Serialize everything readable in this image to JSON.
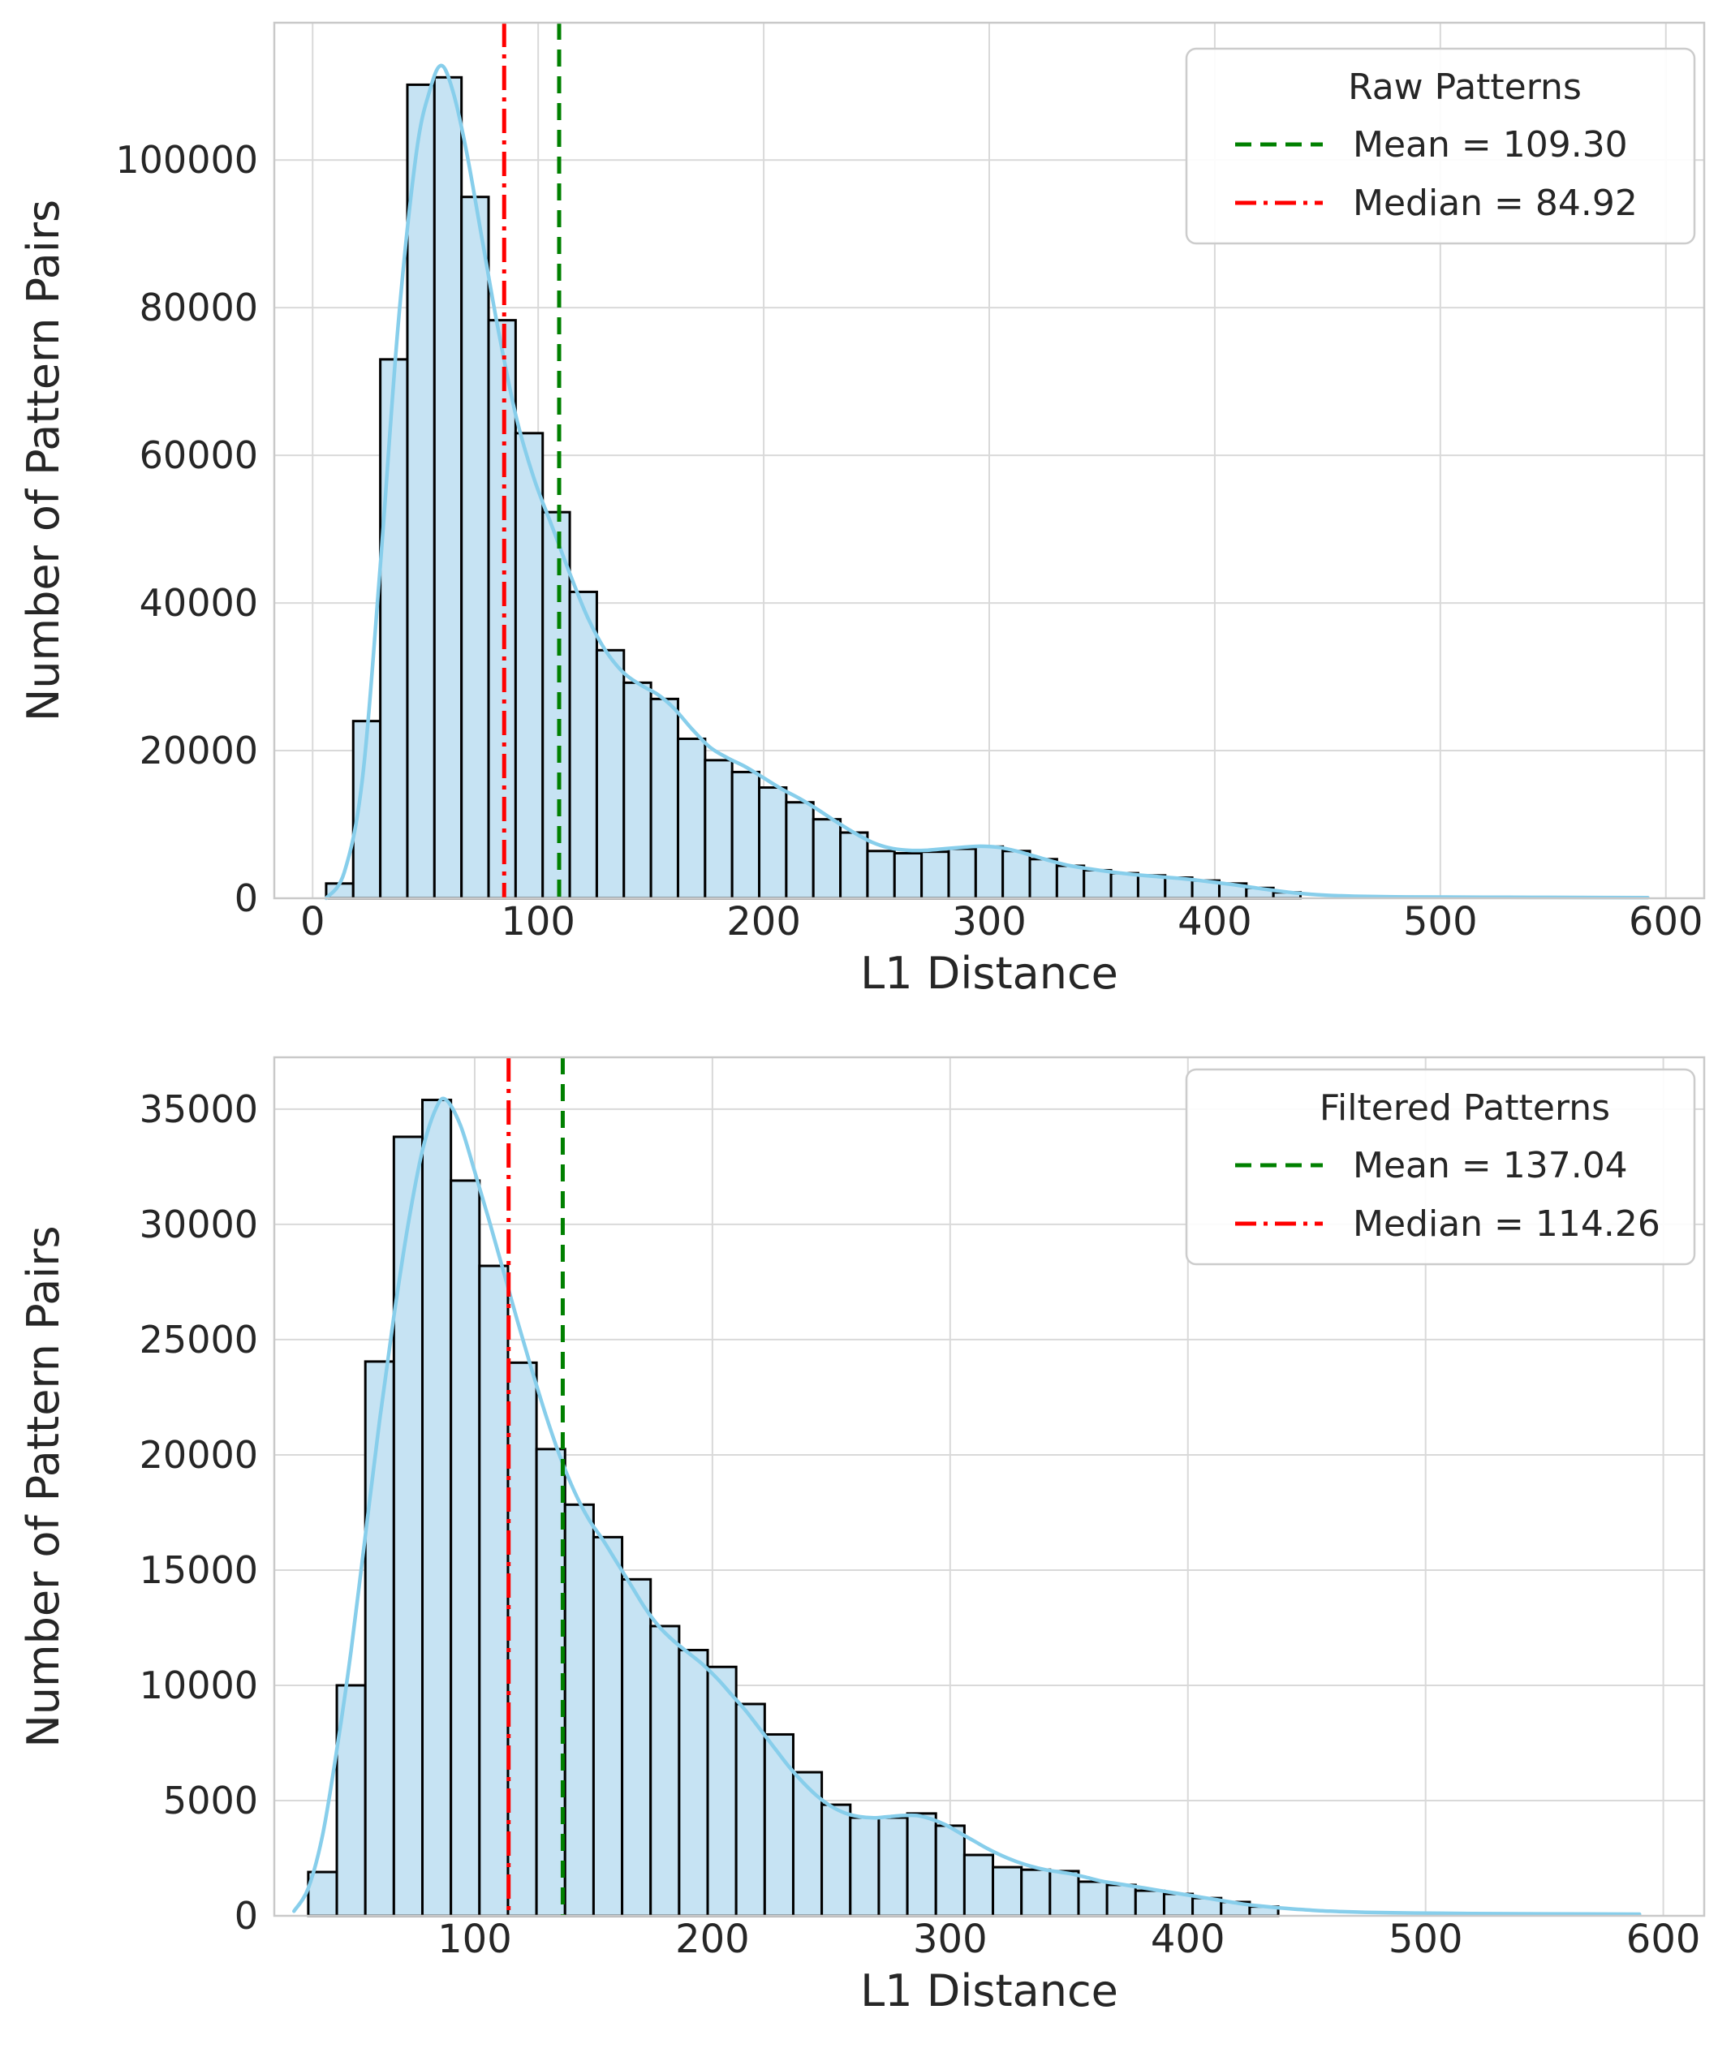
{
  "figure": {
    "background": "#ffffff",
    "colors": {
      "bar_fill": "#c6e3f3",
      "bar_edge": "#000000",
      "kde_line": "#87ceeb",
      "mean_line": "#008000",
      "median_line": "#ff0000",
      "grid": "#d9d9d9",
      "spine": "#c9c9c9",
      "text": "#262626",
      "legend_border": "#cccccc",
      "legend_fill": "#ffffff"
    }
  },
  "chart_data": [
    {
      "type": "bar",
      "name": "raw-patterns-histogram",
      "title": "",
      "xlabel": "L1 Distance",
      "ylabel": "Number of Pattern Pairs",
      "legend": {
        "position": "upper right",
        "title": "Raw Patterns",
        "mean_label": "Mean = 109.30",
        "median_label": "Median = 84.92"
      },
      "mean": 109.3,
      "median": 84.92,
      "grid": true,
      "xlim": [
        -17,
        617
      ],
      "ylim": [
        0,
        118600
      ],
      "x_ticks": [
        0,
        100,
        200,
        300,
        400,
        500,
        600
      ],
      "y_ticks": [
        0,
        20000,
        40000,
        60000,
        80000,
        100000
      ],
      "bin_start": 6,
      "bin_width": 12,
      "counts": [
        2000,
        24000,
        73000,
        110200,
        111200,
        95000,
        78300,
        63000,
        52300,
        41500,
        33600,
        29200,
        27000,
        21600,
        18700,
        17100,
        15000,
        13000,
        10700,
        8900,
        6400,
        6100,
        6300,
        6700,
        7000,
        6400,
        5300,
        4400,
        3800,
        3400,
        3100,
        2800,
        2400,
        2000,
        1400,
        800
      ],
      "kde": [
        [
          6,
          0
        ],
        [
          14,
          3500
        ],
        [
          22,
          16000
        ],
        [
          30,
          45000
        ],
        [
          38,
          78000
        ],
        [
          46,
          101000
        ],
        [
          52,
          109500
        ],
        [
          57,
          112800
        ],
        [
          62,
          109500
        ],
        [
          68,
          101500
        ],
        [
          75,
          89500
        ],
        [
          82,
          77500
        ],
        [
          90,
          65500
        ],
        [
          98,
          57000
        ],
        [
          106,
          50500
        ],
        [
          114,
          44000
        ],
        [
          122,
          38000
        ],
        [
          130,
          33500
        ],
        [
          138,
          30500
        ],
        [
          146,
          28800
        ],
        [
          153,
          27600
        ],
        [
          160,
          25800
        ],
        [
          168,
          23000
        ],
        [
          176,
          20500
        ],
        [
          184,
          19000
        ],
        [
          192,
          17800
        ],
        [
          200,
          16300
        ],
        [
          208,
          14800
        ],
        [
          216,
          13500
        ],
        [
          224,
          12000
        ],
        [
          232,
          10400
        ],
        [
          240,
          8900
        ],
        [
          248,
          7600
        ],
        [
          256,
          6800
        ],
        [
          264,
          6500
        ],
        [
          272,
          6500
        ],
        [
          280,
          6700
        ],
        [
          288,
          6900
        ],
        [
          296,
          7050
        ],
        [
          304,
          6900
        ],
        [
          312,
          6400
        ],
        [
          320,
          5700
        ],
        [
          328,
          5000
        ],
        [
          336,
          4400
        ],
        [
          344,
          4000
        ],
        [
          352,
          3650
        ],
        [
          360,
          3350
        ],
        [
          368,
          3100
        ],
        [
          376,
          2900
        ],
        [
          384,
          2700
        ],
        [
          392,
          2450
        ],
        [
          400,
          2150
        ],
        [
          408,
          1850
        ],
        [
          416,
          1500
        ],
        [
          424,
          1150
        ],
        [
          432,
          850
        ],
        [
          440,
          600
        ],
        [
          450,
          400
        ],
        [
          462,
          280
        ],
        [
          480,
          200
        ],
        [
          500,
          160
        ],
        [
          530,
          130
        ],
        [
          560,
          110
        ],
        [
          592,
          90
        ]
      ]
    },
    {
      "type": "bar",
      "name": "filtered-patterns-histogram",
      "title": "",
      "xlabel": "L1 Distance",
      "ylabel": "Number of Pattern Pairs",
      "legend": {
        "position": "upper right",
        "title": "Filtered Patterns",
        "mean_label": "Mean = 137.04",
        "median_label": "Median = 114.26"
      },
      "mean": 137.04,
      "median": 114.26,
      "grid": true,
      "xlim": [
        15.7,
        617.2
      ],
      "ylim": [
        0,
        37250
      ],
      "x_ticks": [
        100,
        200,
        300,
        400,
        500,
        600
      ],
      "y_ticks": [
        0,
        5000,
        10000,
        15000,
        20000,
        25000,
        30000,
        35000
      ],
      "bin_start": 30,
      "bin_width": 12,
      "counts": [
        1900,
        10000,
        24050,
        33800,
        35400,
        31900,
        28200,
        24000,
        20250,
        17840,
        16430,
        14600,
        12570,
        11530,
        10800,
        9190,
        7870,
        6230,
        4820,
        4260,
        4260,
        4440,
        3910,
        2640,
        2110,
        2000,
        1940,
        1480,
        1340,
        1090,
        950,
        770,
        600,
        400
      ],
      "kde": [
        [
          24,
          200
        ],
        [
          30,
          1200
        ],
        [
          36,
          3500
        ],
        [
          42,
          7200
        ],
        [
          48,
          11500
        ],
        [
          54,
          16500
        ],
        [
          60,
          21500
        ],
        [
          66,
          26000
        ],
        [
          72,
          30000
        ],
        [
          78,
          33200
        ],
        [
          84,
          35100
        ],
        [
          88,
          35400
        ],
        [
          94,
          34300
        ],
        [
          100,
          32300
        ],
        [
          106,
          30200
        ],
        [
          112,
          28000
        ],
        [
          118,
          25800
        ],
        [
          124,
          23700
        ],
        [
          130,
          21700
        ],
        [
          136,
          19900
        ],
        [
          142,
          18400
        ],
        [
          148,
          17200
        ],
        [
          154,
          16300
        ],
        [
          160,
          15300
        ],
        [
          166,
          14300
        ],
        [
          172,
          13300
        ],
        [
          178,
          12500
        ],
        [
          184,
          11900
        ],
        [
          190,
          11400
        ],
        [
          196,
          10900
        ],
        [
          202,
          10300
        ],
        [
          208,
          9600
        ],
        [
          214,
          8900
        ],
        [
          220,
          8100
        ],
        [
          226,
          7300
        ],
        [
          232,
          6500
        ],
        [
          238,
          5800
        ],
        [
          244,
          5200
        ],
        [
          250,
          4750
        ],
        [
          256,
          4450
        ],
        [
          262,
          4300
        ],
        [
          268,
          4250
        ],
        [
          274,
          4300
        ],
        [
          280,
          4350
        ],
        [
          286,
          4350
        ],
        [
          292,
          4200
        ],
        [
          298,
          3950
        ],
        [
          304,
          3600
        ],
        [
          310,
          3250
        ],
        [
          316,
          2900
        ],
        [
          322,
          2600
        ],
        [
          328,
          2350
        ],
        [
          334,
          2150
        ],
        [
          340,
          2000
        ],
        [
          346,
          1900
        ],
        [
          352,
          1800
        ],
        [
          358,
          1650
        ],
        [
          364,
          1500
        ],
        [
          370,
          1400
        ],
        [
          376,
          1300
        ],
        [
          382,
          1200
        ],
        [
          388,
          1100
        ],
        [
          394,
          1000
        ],
        [
          400,
          900
        ],
        [
          406,
          800
        ],
        [
          412,
          700
        ],
        [
          418,
          600
        ],
        [
          424,
          500
        ],
        [
          430,
          430
        ],
        [
          438,
          350
        ],
        [
          448,
          270
        ],
        [
          460,
          200
        ],
        [
          475,
          150
        ],
        [
          495,
          120
        ],
        [
          520,
          100
        ],
        [
          550,
          85
        ],
        [
          590,
          70
        ]
      ]
    }
  ]
}
